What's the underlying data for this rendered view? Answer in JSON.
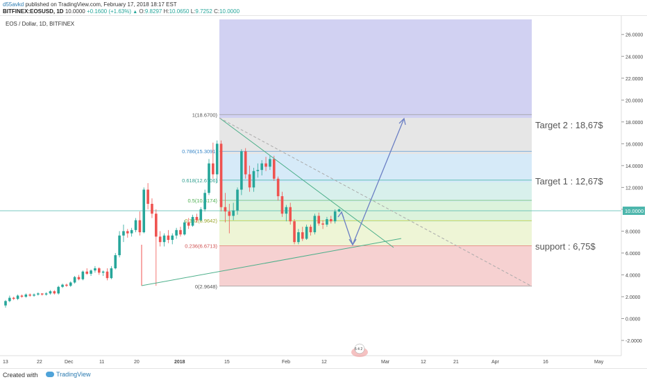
{
  "header": {
    "author": "d55avkd",
    "published": "published on TradingView.com, February 17, 2018 18:17 EST",
    "symbol": "BITFINEX:EOSUSD, 1D",
    "price": "10.0000",
    "change": "+0.1600 (+1.63%)",
    "o_label": "O:",
    "o_value": "9.8297",
    "h_label": "H:",
    "h_value": "10.0650",
    "l_label": "L:",
    "l_value": "9.7252",
    "c_label": "C:",
    "c_value": "10.0000"
  },
  "instrument": "EOS / Dollar, 1D, BITFINEX",
  "price_axis": {
    "ticks": [
      "26.0000",
      "24.0000",
      "22.0000",
      "20.0000",
      "18.0000",
      "16.0000",
      "14.0000",
      "12.0000",
      "10.0000",
      "8.0000",
      "6.0000",
      "4.0000",
      "2.0000",
      "0.0000",
      "-2.0000"
    ],
    "current": "10.0000"
  },
  "time_axis": {
    "labels": [
      "13",
      "22",
      "Dec",
      "11",
      "20",
      "2018",
      "15",
      "Feb",
      "12",
      "Mar",
      "12",
      "21",
      "Apr",
      "16",
      "May"
    ]
  },
  "fib_levels": [
    {
      "ratio_label": "1(18.6700)",
      "price": 18.67
    },
    {
      "ratio_label": "0.786(15.3091)",
      "price": 15.3091
    },
    {
      "ratio_label": "0.618(12.6706)",
      "price": 12.6706
    },
    {
      "ratio_label": "0.5(10.8174)",
      "price": 10.8174
    },
    {
      "ratio_label": "0.382(8.9642)",
      "price": 8.9642
    },
    {
      "ratio_label": "0.236(6.6713)",
      "price": 6.6713
    },
    {
      "ratio_label": "0(2.9648)",
      "price": 2.9648
    }
  ],
  "annotations": {
    "target2": "Target 2 : 18,67$",
    "target1": "Target 1 : 12,67$",
    "support": "support : 6,75$"
  },
  "badge": "5 4 2",
  "footer": {
    "created": "Created with",
    "brand": "TradingView"
  },
  "colors": {
    "up": "#26a69a",
    "down": "#ef5350",
    "zone_top": "#c9c9f0",
    "fib_line": "#5b9bd5",
    "arrow": "#6b7fc4"
  },
  "chart_data": {
    "type": "candlestick",
    "symbol": "BITFINEX:EOSUSD",
    "interval": "1D",
    "ylim": [
      -3.5,
      28
    ],
    "candles": [
      {
        "o": 1.2,
        "h": 1.7,
        "l": 1.0,
        "c": 1.6
      },
      {
        "o": 1.6,
        "h": 2.1,
        "l": 1.5,
        "c": 1.9
      },
      {
        "o": 1.9,
        "h": 2.0,
        "l": 1.7,
        "c": 1.8
      },
      {
        "o": 1.8,
        "h": 2.2,
        "l": 1.7,
        "c": 2.1
      },
      {
        "o": 2.1,
        "h": 2.2,
        "l": 1.9,
        "c": 2.0
      },
      {
        "o": 2.0,
        "h": 2.3,
        "l": 1.9,
        "c": 2.2
      },
      {
        "o": 2.2,
        "h": 2.3,
        "l": 2.0,
        "c": 2.1
      },
      {
        "o": 2.1,
        "h": 2.3,
        "l": 2.0,
        "c": 2.2
      },
      {
        "o": 2.2,
        "h": 2.4,
        "l": 2.1,
        "c": 2.3
      },
      {
        "o": 2.3,
        "h": 2.3,
        "l": 2.1,
        "c": 2.2
      },
      {
        "o": 2.2,
        "h": 2.4,
        "l": 2.1,
        "c": 2.3
      },
      {
        "o": 2.3,
        "h": 2.6,
        "l": 2.2,
        "c": 2.5
      },
      {
        "o": 2.5,
        "h": 2.6,
        "l": 2.2,
        "c": 2.3
      },
      {
        "o": 2.3,
        "h": 3.0,
        "l": 2.2,
        "c": 2.9
      },
      {
        "o": 2.9,
        "h": 3.2,
        "l": 2.8,
        "c": 3.1
      },
      {
        "o": 3.1,
        "h": 3.2,
        "l": 2.9,
        "c": 3.0
      },
      {
        "o": 3.0,
        "h": 3.4,
        "l": 2.9,
        "c": 3.3
      },
      {
        "o": 3.3,
        "h": 3.9,
        "l": 3.2,
        "c": 3.8
      },
      {
        "o": 3.8,
        "h": 4.0,
        "l": 3.5,
        "c": 3.6
      },
      {
        "o": 3.6,
        "h": 4.4,
        "l": 3.5,
        "c": 4.3
      },
      {
        "o": 4.3,
        "h": 4.6,
        "l": 4.0,
        "c": 4.1
      },
      {
        "o": 4.1,
        "h": 4.5,
        "l": 3.9,
        "c": 4.4
      },
      {
        "o": 4.4,
        "h": 4.8,
        "l": 4.2,
        "c": 4.6
      },
      {
        "o": 4.6,
        "h": 4.7,
        "l": 4.0,
        "c": 4.2
      },
      {
        "o": 4.2,
        "h": 4.4,
        "l": 3.9,
        "c": 4.3
      },
      {
        "o": 4.3,
        "h": 4.6,
        "l": 3.5,
        "c": 3.7
      },
      {
        "o": 3.7,
        "h": 4.8,
        "l": 3.6,
        "c": 4.6
      },
      {
        "o": 4.6,
        "h": 6.0,
        "l": 4.5,
        "c": 5.8
      },
      {
        "o": 5.8,
        "h": 8.0,
        "l": 5.6,
        "c": 7.6
      },
      {
        "o": 7.6,
        "h": 8.6,
        "l": 7.0,
        "c": 8.0
      },
      {
        "o": 8.0,
        "h": 8.2,
        "l": 7.4,
        "c": 7.8
      },
      {
        "o": 7.8,
        "h": 8.3,
        "l": 7.5,
        "c": 8.1
      },
      {
        "o": 8.1,
        "h": 9.2,
        "l": 7.9,
        "c": 9.0
      },
      {
        "o": 9.0,
        "h": 9.8,
        "l": 7.6,
        "c": 7.9
      },
      {
        "o": 7.9,
        "h": 12.0,
        "l": 7.8,
        "c": 11.8
      },
      {
        "o": 11.8,
        "h": 12.4,
        "l": 10.0,
        "c": 10.5
      },
      {
        "o": 10.5,
        "h": 11.0,
        "l": 9.2,
        "c": 9.6
      },
      {
        "o": 9.6,
        "h": 10.0,
        "l": 3.0,
        "c": 7.5
      },
      {
        "o": 7.5,
        "h": 8.0,
        "l": 6.6,
        "c": 7.0
      },
      {
        "o": 7.0,
        "h": 7.8,
        "l": 6.6,
        "c": 7.6
      },
      {
        "o": 7.6,
        "h": 8.1,
        "l": 6.9,
        "c": 7.2
      },
      {
        "o": 7.2,
        "h": 7.8,
        "l": 6.8,
        "c": 7.6
      },
      {
        "o": 7.6,
        "h": 8.3,
        "l": 7.3,
        "c": 8.1
      },
      {
        "o": 8.1,
        "h": 8.4,
        "l": 7.5,
        "c": 7.7
      },
      {
        "o": 7.7,
        "h": 9.0,
        "l": 7.6,
        "c": 8.8
      },
      {
        "o": 8.8,
        "h": 9.2,
        "l": 8.2,
        "c": 8.5
      },
      {
        "o": 8.5,
        "h": 9.5,
        "l": 8.4,
        "c": 9.3
      },
      {
        "o": 9.3,
        "h": 9.6,
        "l": 8.8,
        "c": 9.0
      },
      {
        "o": 9.0,
        "h": 10.2,
        "l": 8.9,
        "c": 10.0
      },
      {
        "o": 10.0,
        "h": 11.8,
        "l": 9.8,
        "c": 11.5
      },
      {
        "o": 11.5,
        "h": 14.6,
        "l": 11.3,
        "c": 14.2
      },
      {
        "o": 14.2,
        "h": 16.1,
        "l": 12.8,
        "c": 13.2
      },
      {
        "o": 13.2,
        "h": 16.3,
        "l": 12.4,
        "c": 16.0
      },
      {
        "o": 16.0,
        "h": 16.3,
        "l": 9.8,
        "c": 10.2
      },
      {
        "o": 10.2,
        "h": 11.5,
        "l": 8.8,
        "c": 9.8
      },
      {
        "o": 9.8,
        "h": 10.5,
        "l": 7.8,
        "c": 9.4
      },
      {
        "o": 9.4,
        "h": 10.6,
        "l": 9.0,
        "c": 9.9
      },
      {
        "o": 9.9,
        "h": 12.0,
        "l": 9.5,
        "c": 11.8
      },
      {
        "o": 11.8,
        "h": 15.5,
        "l": 11.3,
        "c": 15.3
      },
      {
        "o": 15.3,
        "h": 15.6,
        "l": 12.8,
        "c": 13.2
      },
      {
        "o": 13.2,
        "h": 14.0,
        "l": 11.6,
        "c": 12.0
      },
      {
        "o": 12.0,
        "h": 13.8,
        "l": 11.6,
        "c": 13.5
      },
      {
        "o": 13.5,
        "h": 14.2,
        "l": 12.9,
        "c": 13.6
      },
      {
        "o": 13.6,
        "h": 14.5,
        "l": 13.1,
        "c": 14.2
      },
      {
        "o": 14.2,
        "h": 14.8,
        "l": 13.5,
        "c": 13.9
      },
      {
        "o": 13.9,
        "h": 14.9,
        "l": 13.6,
        "c": 14.6
      },
      {
        "o": 14.6,
        "h": 14.9,
        "l": 12.6,
        "c": 12.8
      },
      {
        "o": 12.8,
        "h": 13.0,
        "l": 10.8,
        "c": 11.2
      },
      {
        "o": 11.2,
        "h": 11.6,
        "l": 9.3,
        "c": 9.6
      },
      {
        "o": 9.6,
        "h": 10.4,
        "l": 8.9,
        "c": 10.2
      },
      {
        "o": 10.2,
        "h": 10.6,
        "l": 8.6,
        "c": 8.9
      },
      {
        "o": 8.9,
        "h": 9.1,
        "l": 6.8,
        "c": 7.0
      },
      {
        "o": 7.0,
        "h": 8.2,
        "l": 6.8,
        "c": 7.9
      },
      {
        "o": 7.9,
        "h": 8.4,
        "l": 7.1,
        "c": 7.3
      },
      {
        "o": 7.3,
        "h": 8.6,
        "l": 7.2,
        "c": 8.4
      },
      {
        "o": 8.4,
        "h": 8.6,
        "l": 7.6,
        "c": 7.9
      },
      {
        "o": 7.9,
        "h": 9.6,
        "l": 7.7,
        "c": 9.4
      },
      {
        "o": 9.4,
        "h": 9.7,
        "l": 8.5,
        "c": 8.7
      },
      {
        "o": 8.7,
        "h": 9.0,
        "l": 8.2,
        "c": 8.6
      },
      {
        "o": 8.6,
        "h": 9.3,
        "l": 8.4,
        "c": 9.1
      },
      {
        "o": 9.1,
        "h": 9.4,
        "l": 8.7,
        "c": 8.9
      },
      {
        "o": 8.9,
        "h": 10.0,
        "l": 8.7,
        "c": 9.8
      },
      {
        "o": 9.8,
        "h": 10.07,
        "l": 9.73,
        "c": 10.0
      }
    ]
  }
}
